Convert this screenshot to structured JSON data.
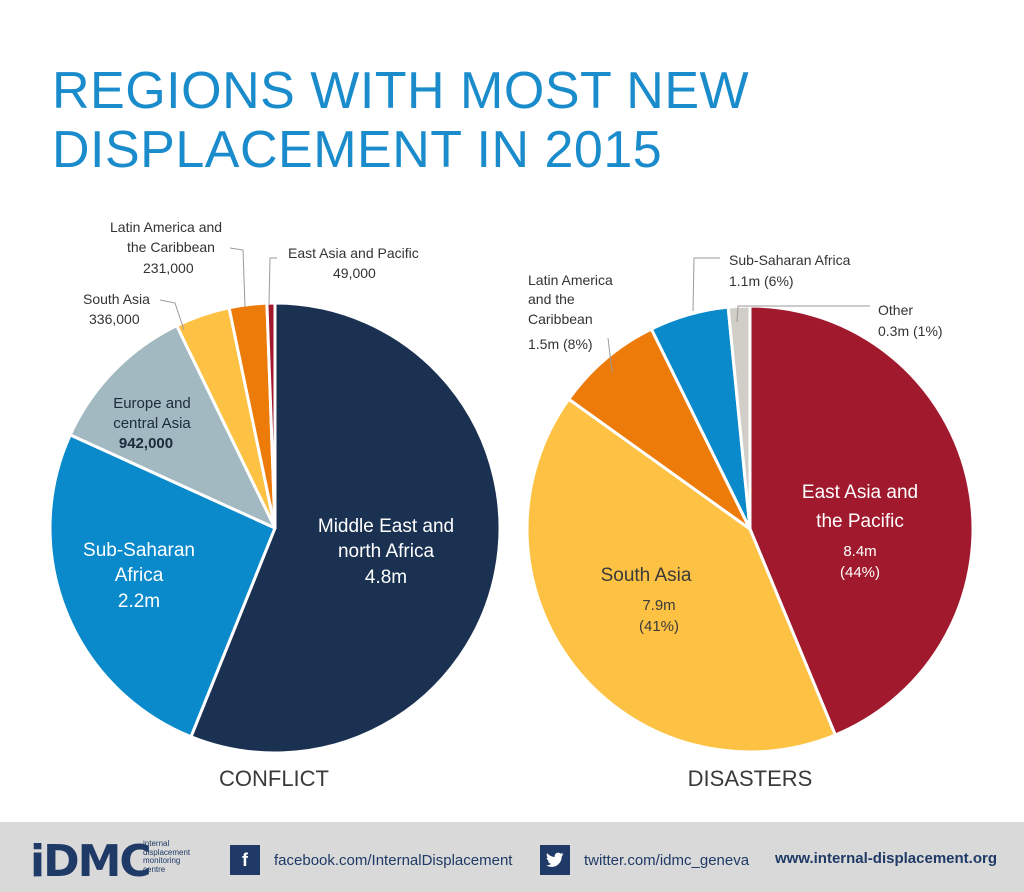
{
  "title": {
    "line1": "REGIONS WITH MOST NEW",
    "line2": "DISPLACEMENT IN 2015"
  },
  "chart_data": [
    {
      "type": "pie",
      "title": "CONFLICT",
      "slices": [
        {
          "name": "Middle East and north Africa",
          "value": 4.8,
          "label": "4.8m",
          "color": "#1b3152"
        },
        {
          "name": "Sub-Saharan Africa",
          "value": 2.2,
          "label": "2.2m",
          "color": "#0a8acb"
        },
        {
          "name": "Europe and central Asia",
          "value": 0.942,
          "label": "942,000",
          "color": "#a3b9c2"
        },
        {
          "name": "South Asia",
          "value": 0.336,
          "label": "336,000",
          "color": "#fdc243"
        },
        {
          "name": "Latin America and the Caribbean",
          "value": 0.231,
          "label": "231,000",
          "color": "#ed7b09"
        },
        {
          "name": "East Asia and Pacific",
          "value": 0.049,
          "label": "49,000",
          "color": "#a1192d"
        }
      ]
    },
    {
      "type": "pie",
      "title": "DISASTERS",
      "slices": [
        {
          "name": "East Asia and the Pacific",
          "value": 8.4,
          "label": "8.4m",
          "percent": "(44%)",
          "color": "#a1192d"
        },
        {
          "name": "South Asia",
          "value": 7.9,
          "label": "7.9m",
          "percent": "(41%)",
          "color": "#fdc243"
        },
        {
          "name": "Latin America and the Caribbean",
          "value": 1.5,
          "label": "1.5m (8%)",
          "color": "#ed7b09"
        },
        {
          "name": "Sub-Saharan Africa",
          "value": 1.1,
          "label": "1.1m (6%)",
          "color": "#0a8acb"
        },
        {
          "name": "Other",
          "value": 0.3,
          "label": "0.3m (1%)",
          "color": "#d0cec7"
        }
      ]
    }
  ],
  "labels": {
    "conflict": {
      "mena_l1": "Middle East and",
      "mena_l2": "north Africa",
      "mena_v": "4.8m",
      "ssa_l1": "Sub-Saharan",
      "ssa_l2": "Africa",
      "ssa_v": "2.2m",
      "eca_l1": "Europe and",
      "eca_l2": "central Asia",
      "eca_v": "942,000",
      "sa_l1": "South Asia",
      "sa_v": "336,000",
      "lac_l1": "Latin America and",
      "lac_l2": "the Caribbean",
      "lac_v": "231,000",
      "eap_l1": "East Asia and Pacific",
      "eap_v": "49,000"
    },
    "disasters": {
      "eap_l1": "East Asia and",
      "eap_l2": "the Pacific",
      "eap_v": "8.4m",
      "eap_p": "(44%)",
      "sa_l1": "South Asia",
      "sa_v": "7.9m",
      "sa_p": "(41%)",
      "lac_l1": "Latin America",
      "lac_l2": "and the",
      "lac_l3": "Caribbean",
      "lac_v": "1.5m (8%)",
      "ssa_l1": "Sub-Saharan Africa",
      "ssa_v": "1.1m (6%)",
      "oth_l1": "Other",
      "oth_v": "0.3m (1%)"
    }
  },
  "footer": {
    "logo_text": "iDMC",
    "logo_line1": "internal",
    "logo_line2": "displacement",
    "logo_line3": "monitoring",
    "logo_line4": "centre",
    "facebook_icon_glyph": "f",
    "facebook": "facebook.com/InternalDisplacement",
    "twitter": "twitter.com/idmc_geneva",
    "website": "www.internal-displacement.org"
  },
  "colors": {
    "title": "#1a8ccc",
    "navy": "#1f3a66"
  }
}
